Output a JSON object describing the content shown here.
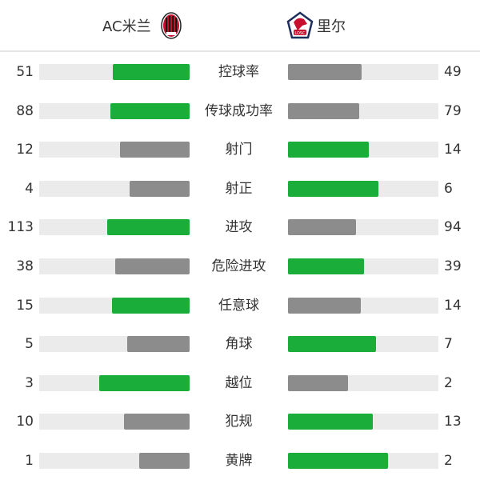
{
  "home_team": {
    "name": "AC米兰",
    "logo": "ac-milan-crest"
  },
  "away_team": {
    "name": "里尔",
    "logo": "lille-losc-crest"
  },
  "colors": {
    "higher": "#1aad3a",
    "lower": "#8c8c8c",
    "track": "#ebebeb"
  },
  "stats": [
    {
      "label": "控球率",
      "home": 51,
      "away": 49
    },
    {
      "label": "传球成功率",
      "home": 88,
      "away": 79
    },
    {
      "label": "射门",
      "home": 12,
      "away": 14
    },
    {
      "label": "射正",
      "home": 4,
      "away": 6
    },
    {
      "label": "进攻",
      "home": 113,
      "away": 94
    },
    {
      "label": "危险进攻",
      "home": 38,
      "away": 39
    },
    {
      "label": "任意球",
      "home": 15,
      "away": 14
    },
    {
      "label": "角球",
      "home": 5,
      "away": 7
    },
    {
      "label": "越位",
      "home": 3,
      "away": 2
    },
    {
      "label": "犯规",
      "home": 10,
      "away": 13
    },
    {
      "label": "黄牌",
      "home": 1,
      "away": 2
    }
  ]
}
